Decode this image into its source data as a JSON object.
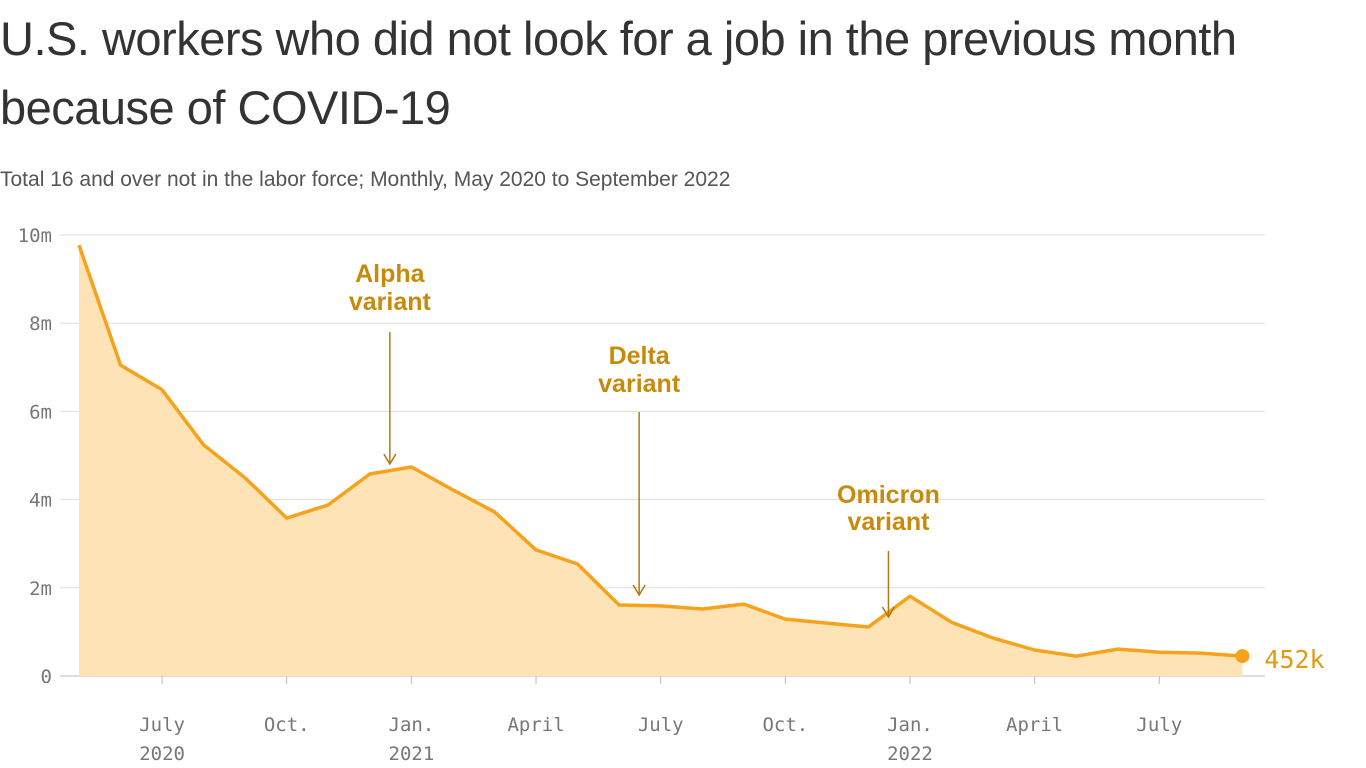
{
  "chart_data": {
    "type": "area",
    "title": "U.S. workers who did not look for a job in the previous month because of COVID-19",
    "subtitle": "Total 16 and over not in the labor force; Monthly, May 2020 to September 2022",
    "xlabel": "",
    "ylabel": "",
    "x": [
      "2020-05",
      "2020-06",
      "2020-07",
      "2020-08",
      "2020-09",
      "2020-10",
      "2020-11",
      "2020-12",
      "2021-01",
      "2021-02",
      "2021-03",
      "2021-04",
      "2021-05",
      "2021-06",
      "2021-07",
      "2021-08",
      "2021-09",
      "2021-10",
      "2021-11",
      "2021-12",
      "2022-01",
      "2022-02",
      "2022-03",
      "2022-04",
      "2022-05",
      "2022-06",
      "2022-07",
      "2022-08",
      "2022-09"
    ],
    "values": [
      9.77,
      7.05,
      6.49,
      5.24,
      4.49,
      3.58,
      3.88,
      4.58,
      4.74,
      4.22,
      3.72,
      2.86,
      2.54,
      1.61,
      1.59,
      1.52,
      1.63,
      1.29,
      1.2,
      1.11,
      1.81,
      1.22,
      0.86,
      0.59,
      0.45,
      0.61,
      0.54,
      0.52,
      0.452
    ],
    "unit": "millions",
    "ylim": [
      0,
      10
    ],
    "yticks": [
      {
        "value": 0,
        "label": "0"
      },
      {
        "value": 2,
        "label": "2m"
      },
      {
        "value": 4,
        "label": "4m"
      },
      {
        "value": 6,
        "label": "6m"
      },
      {
        "value": 8,
        "label": "8m"
      },
      {
        "value": 10,
        "label": "10m"
      }
    ],
    "xticks": [
      {
        "x": "2020-07",
        "label": "July",
        "year": "2020"
      },
      {
        "x": "2020-10",
        "label": "Oct.",
        "year": ""
      },
      {
        "x": "2021-01",
        "label": "Jan.",
        "year": "2021"
      },
      {
        "x": "2021-04",
        "label": "April",
        "year": ""
      },
      {
        "x": "2021-07",
        "label": "July",
        "year": ""
      },
      {
        "x": "2021-10",
        "label": "Oct.",
        "year": ""
      },
      {
        "x": "2022-01",
        "label": "Jan.",
        "year": "2022"
      },
      {
        "x": "2022-04",
        "label": "April",
        "year": ""
      },
      {
        "x": "2022-07",
        "label": "July",
        "year": ""
      }
    ],
    "annotations": [
      {
        "x": "2020-12",
        "lines": [
          "Alpha",
          "variant"
        ]
      },
      {
        "x": "2021-06",
        "lines": [
          "Delta",
          "variant"
        ]
      },
      {
        "x": "2021-12",
        "lines": [
          "Omicron",
          "variant"
        ]
      }
    ],
    "last_value_label": "452k",
    "grid": true,
    "colors": {
      "line": "#f7a21b",
      "fill": "#fde3b6",
      "annotation": "#c88a0a",
      "grid": "#dddddd"
    }
  }
}
